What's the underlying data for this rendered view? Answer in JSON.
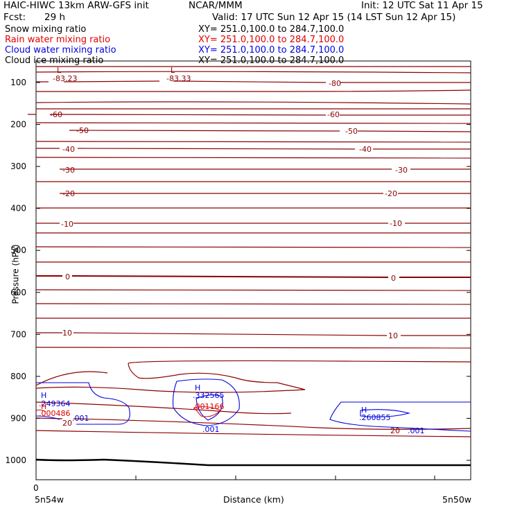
{
  "header": {
    "model": "HAIC-HIWC 13km ARW-GFS init",
    "org": "NCAR/MMM",
    "init": "Init: 12 UTC Sat 11 Apr 15",
    "fcst_label": "Fcst:",
    "fcst_value": "29 h",
    "valid": "Valid: 17 UTC Sun 12 Apr 15 (14 LST Sun 12 Apr 15)"
  },
  "fields": [
    {
      "name": "Snow mixing ratio",
      "xy": "XY= 251.0,100.0 to 284.7,100.0",
      "color": "#000000"
    },
    {
      "name": "Rain water mixing ratio",
      "xy": "XY= 251.0,100.0 to 284.7,100.0",
      "color": "#e00000"
    },
    {
      "name": "Cloud water mixing ratio",
      "xy": "XY= 251.0,100.0 to 284.7,100.0",
      "color": "#0000e0"
    },
    {
      "name": "Cloud ice mixing ratio",
      "xy": "XY= 251.0,100.0 to 284.7,100.0",
      "color": "#000000"
    }
  ],
  "chart_data": {
    "type": "line",
    "xlabel": "Distance (km)",
    "ylabel": "Pressure (hPa)",
    "x_tick_labels": [
      "0"
    ],
    "x_end_labels": [
      "5n54w",
      "5n50w"
    ],
    "y_ticks": [
      100,
      200,
      300,
      400,
      500,
      600,
      700,
      800,
      900,
      1000
    ],
    "y_range": [
      1050,
      50
    ],
    "colors": {
      "temperature": "#8b0000",
      "cloud_water": "#0000e0",
      "rain": "#e00000",
      "terrain": "#000000"
    },
    "isotherm_labels": [
      "-83.23",
      "-83.33",
      "-80",
      "-60",
      "-50",
      "-40",
      "-30",
      "-20",
      "-10",
      "0",
      "10",
      "20"
    ],
    "extrema": [
      {
        "mark": "L",
        "value": "-83.23"
      },
      {
        "mark": "L",
        "value": "-83.33"
      }
    ],
    "cloud_water_labels": [
      ".249364",
      ".332565",
      ".260855",
      ".001",
      ".001",
      ".001"
    ],
    "rain_labels": [
      ".000486",
      ".001166"
    ],
    "highs": [
      "H",
      "H",
      "H",
      "H"
    ]
  }
}
